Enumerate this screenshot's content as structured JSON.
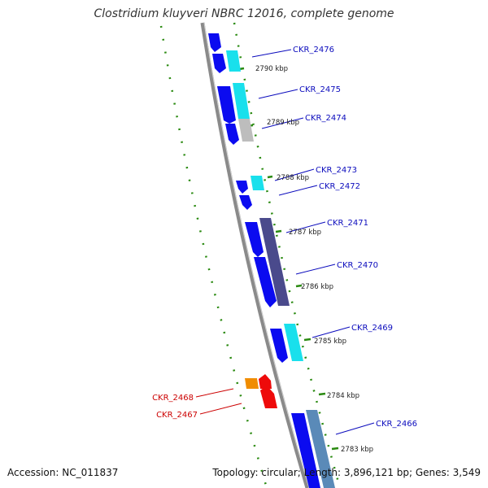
{
  "title": "Clostridium kluyveri NBRC 12016, complete genome",
  "accession": "Accession: NC_011837",
  "summary": "Topology: circular; Length: 3,896,121 bp; Genes: 3,549",
  "colors": {
    "backbone": "#8a8a8a",
    "tick": "#2a8a10",
    "gene_plus": "#0b0bf0",
    "gene_minus": "#ee0a0a",
    "orange": "#f08c00",
    "cyan": "#19e0ec",
    "grey": "#bdbdbd",
    "slate": "#4a4a8c",
    "steel": "#5a8ab8",
    "label_blue": "#0b0bbd",
    "label_red": "#cc0000"
  },
  "kbp_labels": [
    "2790 kbp",
    "2789 kbp",
    "2788 kbp",
    "2787 kbp",
    "2786 kbp",
    "2785 kbp",
    "2784 kbp",
    "2783 kbp"
  ],
  "gene_labels": [
    {
      "id": "g2476",
      "text": "CKR_2476",
      "side": "right"
    },
    {
      "id": "g2475",
      "text": "CKR_2475",
      "side": "right"
    },
    {
      "id": "g2474",
      "text": "CKR_2474",
      "side": "right"
    },
    {
      "id": "g2473",
      "text": "CKR_2473",
      "side": "right"
    },
    {
      "id": "g2472",
      "text": "CKR_2472",
      "side": "right"
    },
    {
      "id": "g2471",
      "text": "CKR_2471",
      "side": "right"
    },
    {
      "id": "g2470",
      "text": "CKR_2470",
      "side": "right"
    },
    {
      "id": "g2469",
      "text": "CKR_2469",
      "side": "right"
    },
    {
      "id": "g2466",
      "text": "CKR_2466",
      "side": "right"
    },
    {
      "id": "g2468",
      "text": "CKR_2468",
      "side": "left"
    },
    {
      "id": "g2467",
      "text": "CKR_2467",
      "side": "left"
    }
  ]
}
